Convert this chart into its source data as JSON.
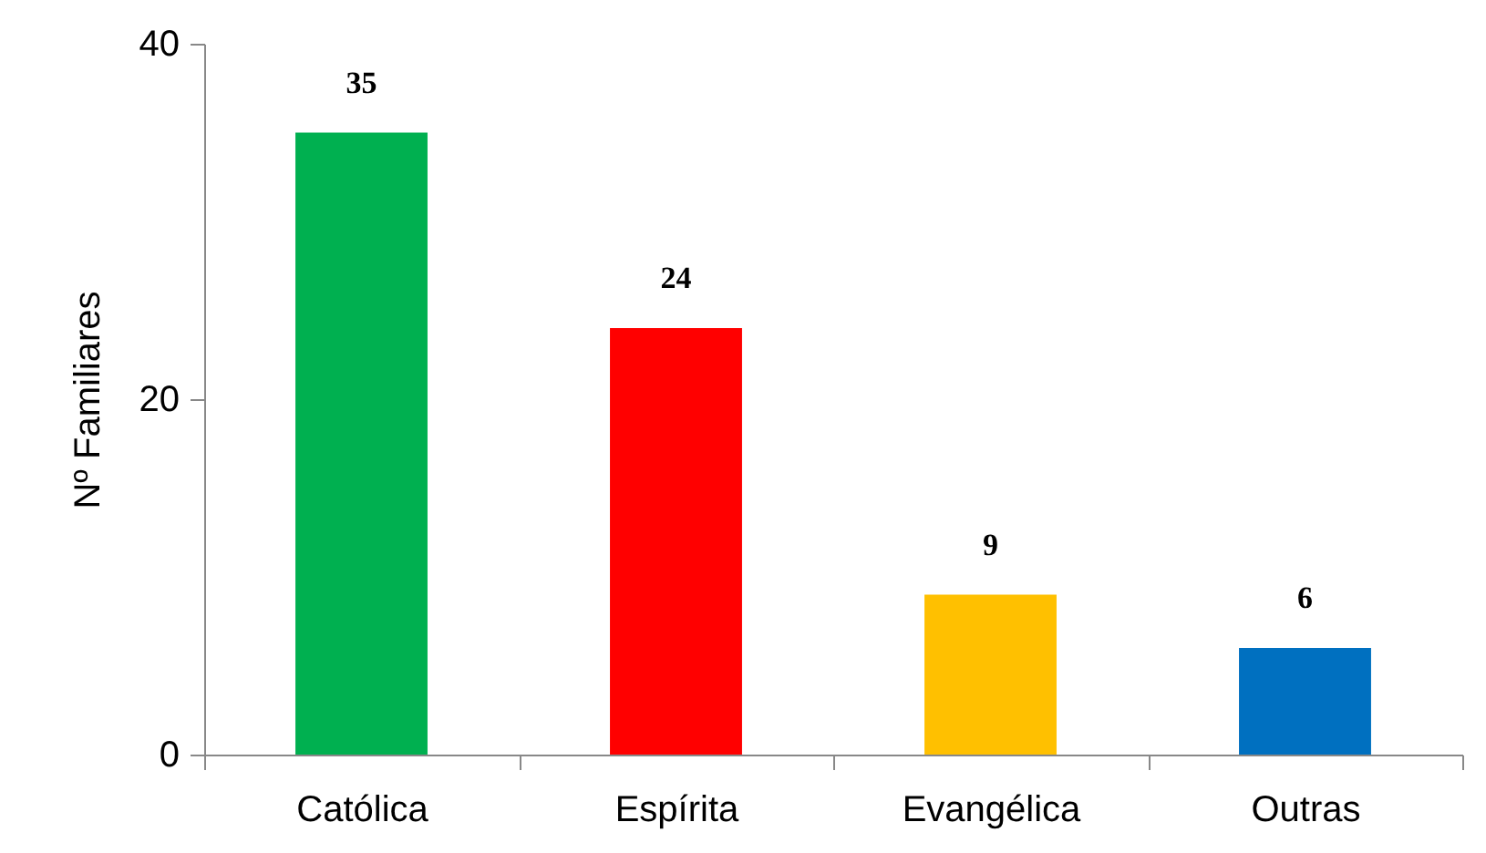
{
  "chart_data": {
    "type": "bar",
    "ylabel": "Nº Familiares",
    "categories": [
      "Católica",
      "Espírita",
      "Evangélica",
      "Outras"
    ],
    "values": [
      35,
      24,
      9,
      6
    ],
    "colors": [
      "#00b050",
      "#ff0000",
      "#ffc000",
      "#0070c0"
    ],
    "ylim": [
      0,
      40
    ],
    "yticks": [
      0,
      20,
      40
    ],
    "grid": false,
    "data_labels": true
  }
}
